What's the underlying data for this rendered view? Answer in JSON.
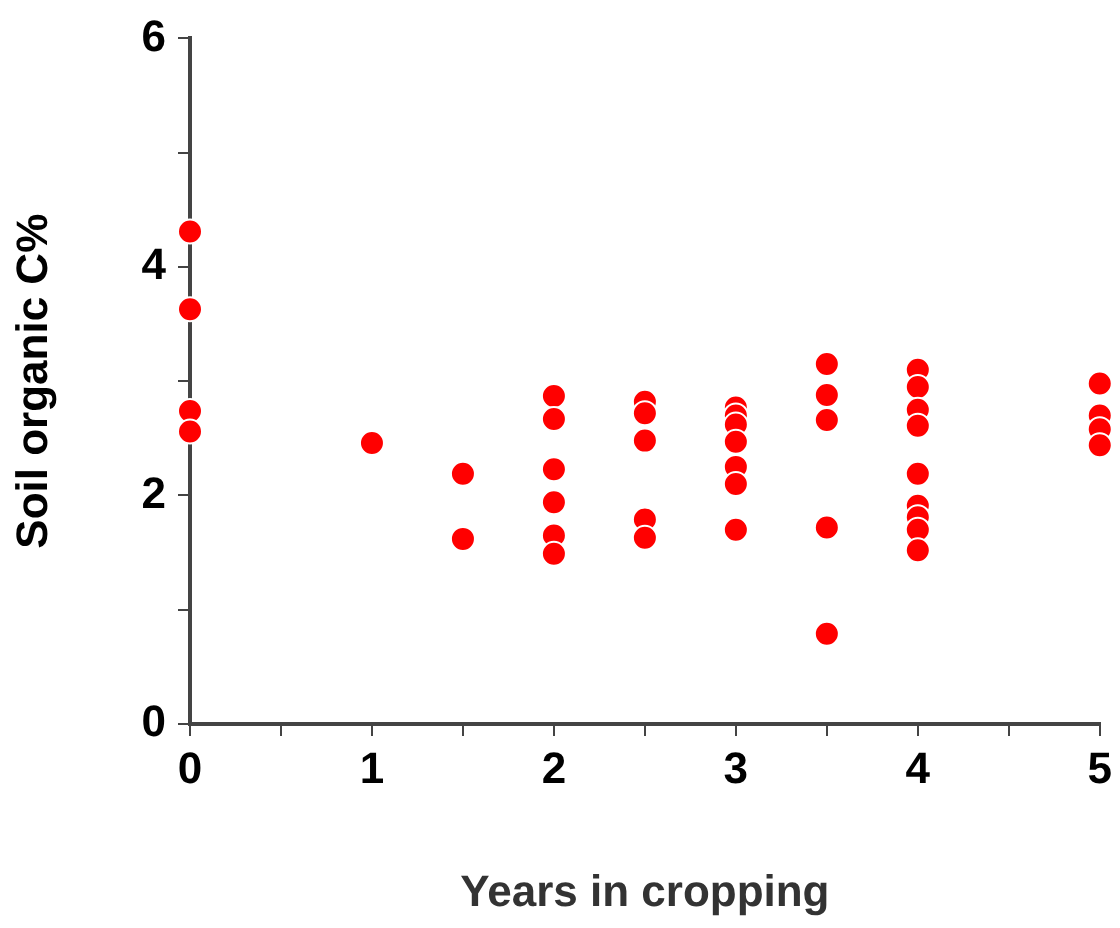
{
  "chart_data": {
    "type": "scatter",
    "xlabel": "Years in cropping",
    "ylabel": "Soil organic C%",
    "x": [
      0,
      0,
      0,
      0,
      1,
      1.5,
      1.5,
      2,
      2,
      2,
      2,
      2,
      2,
      2.5,
      2.5,
      2.5,
      2.5,
      2.5,
      3,
      3,
      3,
      3,
      3,
      3,
      3,
      3.5,
      3.5,
      3.5,
      3.5,
      3.5,
      4,
      4,
      4,
      4,
      4,
      4,
      4,
      4,
      4,
      5,
      5,
      5,
      5
    ],
    "values": [
      4.31,
      3.63,
      2.74,
      2.56,
      2.46,
      2.19,
      1.62,
      2.87,
      2.67,
      2.23,
      1.94,
      1.65,
      1.49,
      2.82,
      2.72,
      2.48,
      1.79,
      1.63,
      2.77,
      2.7,
      2.62,
      2.47,
      2.25,
      2.1,
      1.7,
      3.15,
      2.88,
      2.66,
      1.72,
      0.79,
      3.1,
      2.95,
      2.75,
      2.61,
      2.19,
      1.91,
      1.81,
      1.7,
      1.52,
      2.98,
      2.7,
      2.58,
      2.44
    ],
    "color": "#ff0000",
    "marker": "circle",
    "grid": false,
    "legend": false,
    "xlim": [
      0,
      5
    ],
    "xticks": [
      0,
      {
        "value": 0.5,
        "label": null
      },
      1,
      {
        "value": 1.5,
        "label": null
      },
      2,
      {
        "value": 2.5,
        "label": null
      },
      3,
      {
        "value": 3.5,
        "label": null
      },
      4,
      {
        "value": 4.5,
        "label": null
      },
      5
    ],
    "ylim": [
      0,
      6
    ],
    "yticks": [
      0,
      {
        "value": 1,
        "label": null
      },
      2,
      {
        "value": 3,
        "label": null
      },
      4,
      {
        "value": 5,
        "label": null
      },
      6
    ]
  }
}
